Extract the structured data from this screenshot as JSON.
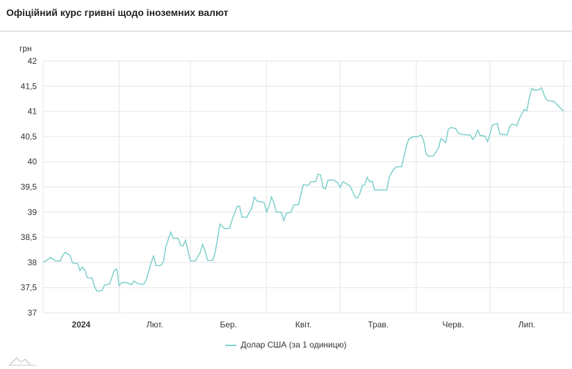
{
  "header": {
    "title": "Офіційний курс гривні щодо іноземних валют"
  },
  "chart_data": {
    "type": "line",
    "ylabel": "грн",
    "ylim": [
      37,
      42
    ],
    "yticks": [
      "42",
      "41,5",
      "41",
      "40,5",
      "40",
      "39,5",
      "39",
      "38,5",
      "38",
      "37,5",
      "37"
    ],
    "ytick_values": [
      42,
      41.5,
      41,
      40.5,
      40,
      39.5,
      39,
      38.5,
      38,
      37.5,
      37
    ],
    "xlim": [
      "2024-01-01",
      "2024-07-31"
    ],
    "xticks": [
      {
        "label": "2024",
        "month_start": "2024-01-01",
        "bold": true
      },
      {
        "label": "Лют.",
        "month_start": "2024-02-01"
      },
      {
        "label": "Бер.",
        "month_start": "2024-03-01"
      },
      {
        "label": "Квіт.",
        "month_start": "2024-04-01"
      },
      {
        "label": "Трав.",
        "month_start": "2024-05-01"
      },
      {
        "label": "Черв.",
        "month_start": "2024-06-01"
      },
      {
        "label": "Лип.",
        "month_start": "2024-07-01"
      }
    ],
    "grid": true,
    "legend_position": "bottom",
    "series": [
      {
        "name": "Долар США (за 1 одиницю)",
        "color": "#7ccfcb",
        "points": [
          [
            "2024-01-01",
            38.0
          ],
          [
            "2024-01-03",
            38.06
          ],
          [
            "2024-01-04",
            38.1
          ],
          [
            "2024-01-06",
            38.03
          ],
          [
            "2024-01-08",
            38.03
          ],
          [
            "2024-01-09",
            38.14
          ],
          [
            "2024-01-10",
            38.2
          ],
          [
            "2024-01-12",
            38.14
          ],
          [
            "2024-01-13",
            37.99
          ],
          [
            "2024-01-15",
            37.98
          ],
          [
            "2024-01-16",
            37.84
          ],
          [
            "2024-01-17",
            37.91
          ],
          [
            "2024-01-18",
            37.84
          ],
          [
            "2024-01-19",
            37.7
          ],
          [
            "2024-01-21",
            37.69
          ],
          [
            "2024-01-22",
            37.51
          ],
          [
            "2024-01-23",
            37.43
          ],
          [
            "2024-01-25",
            37.44
          ],
          [
            "2024-01-26",
            37.55
          ],
          [
            "2024-01-28",
            37.57
          ],
          [
            "2024-01-30",
            37.84
          ],
          [
            "2024-01-31",
            37.87
          ],
          [
            "2024-02-01",
            37.54
          ],
          [
            "2024-02-02",
            37.6
          ],
          [
            "2024-02-04",
            37.6
          ],
          [
            "2024-02-06",
            37.56
          ],
          [
            "2024-02-07",
            37.63
          ],
          [
            "2024-02-09",
            37.57
          ],
          [
            "2024-02-11",
            37.57
          ],
          [
            "2024-02-12",
            37.65
          ],
          [
            "2024-02-14",
            38.0
          ],
          [
            "2024-02-15",
            38.13
          ],
          [
            "2024-02-16",
            37.94
          ],
          [
            "2024-02-18",
            37.94
          ],
          [
            "2024-02-19",
            38.01
          ],
          [
            "2024-02-20",
            38.32
          ],
          [
            "2024-02-22",
            38.6
          ],
          [
            "2024-02-23",
            38.48
          ],
          [
            "2024-02-25",
            38.48
          ],
          [
            "2024-02-26",
            38.34
          ],
          [
            "2024-02-27",
            38.33
          ],
          [
            "2024-02-28",
            38.44
          ],
          [
            "2024-03-01",
            38.03
          ],
          [
            "2024-03-03",
            38.03
          ],
          [
            "2024-03-05",
            38.2
          ],
          [
            "2024-03-06",
            38.36
          ],
          [
            "2024-03-07",
            38.22
          ],
          [
            "2024-03-08",
            38.04
          ],
          [
            "2024-03-10",
            38.04
          ],
          [
            "2024-03-11",
            38.18
          ],
          [
            "2024-03-12",
            38.45
          ],
          [
            "2024-03-13",
            38.76
          ],
          [
            "2024-03-15",
            38.67
          ],
          [
            "2024-03-17",
            38.68
          ],
          [
            "2024-03-18",
            38.85
          ],
          [
            "2024-03-20",
            39.11
          ],
          [
            "2024-03-21",
            39.12
          ],
          [
            "2024-03-22",
            38.9
          ],
          [
            "2024-03-24",
            38.9
          ],
          [
            "2024-03-26",
            39.08
          ],
          [
            "2024-03-27",
            39.3
          ],
          [
            "2024-03-28",
            39.22
          ],
          [
            "2024-03-31",
            39.19
          ],
          [
            "2024-04-01",
            39.0
          ],
          [
            "2024-04-02",
            39.11
          ],
          [
            "2024-04-03",
            39.3
          ],
          [
            "2024-04-04",
            39.18
          ],
          [
            "2024-04-05",
            39.0
          ],
          [
            "2024-04-07",
            39.0
          ],
          [
            "2024-04-08",
            38.83
          ],
          [
            "2024-04-09",
            38.98
          ],
          [
            "2024-04-11",
            39.0
          ],
          [
            "2024-04-12",
            39.14
          ],
          [
            "2024-04-14",
            39.15
          ],
          [
            "2024-04-15",
            39.36
          ],
          [
            "2024-04-16",
            39.55
          ],
          [
            "2024-04-18",
            39.53
          ],
          [
            "2024-04-19",
            39.6
          ],
          [
            "2024-04-21",
            39.61
          ],
          [
            "2024-04-22",
            39.75
          ],
          [
            "2024-04-23",
            39.74
          ],
          [
            "2024-04-24",
            39.49
          ],
          [
            "2024-04-25",
            39.46
          ],
          [
            "2024-04-26",
            39.63
          ],
          [
            "2024-04-28",
            39.64
          ],
          [
            "2024-04-30",
            39.59
          ],
          [
            "2024-05-01",
            39.49
          ],
          [
            "2024-05-02",
            39.6
          ],
          [
            "2024-05-03",
            39.58
          ],
          [
            "2024-05-05",
            39.52
          ],
          [
            "2024-05-07",
            39.3
          ],
          [
            "2024-05-08",
            39.28
          ],
          [
            "2024-05-09",
            39.37
          ],
          [
            "2024-05-10",
            39.53
          ],
          [
            "2024-05-11",
            39.54
          ],
          [
            "2024-05-12",
            39.69
          ],
          [
            "2024-05-13",
            39.6
          ],
          [
            "2024-05-14",
            39.62
          ],
          [
            "2024-05-15",
            39.44
          ],
          [
            "2024-05-20",
            39.44
          ],
          [
            "2024-05-21",
            39.7
          ],
          [
            "2024-05-22",
            39.79
          ],
          [
            "2024-05-23",
            39.86
          ],
          [
            "2024-05-24",
            39.9
          ],
          [
            "2024-05-26",
            39.9
          ],
          [
            "2024-05-27",
            40.11
          ],
          [
            "2024-05-28",
            40.32
          ],
          [
            "2024-05-29",
            40.46
          ],
          [
            "2024-05-31",
            40.5
          ],
          [
            "2024-06-01",
            40.49
          ],
          [
            "2024-06-03",
            40.53
          ],
          [
            "2024-06-04",
            40.42
          ],
          [
            "2024-06-05",
            40.15
          ],
          [
            "2024-06-06",
            40.11
          ],
          [
            "2024-06-08",
            40.12
          ],
          [
            "2024-06-10",
            40.27
          ],
          [
            "2024-06-11",
            40.46
          ],
          [
            "2024-06-13",
            40.38
          ],
          [
            "2024-06-14",
            40.64
          ],
          [
            "2024-06-15",
            40.68
          ],
          [
            "2024-06-17",
            40.66
          ],
          [
            "2024-06-18",
            40.57
          ],
          [
            "2024-06-20",
            40.54
          ],
          [
            "2024-06-23",
            40.53
          ],
          [
            "2024-06-24",
            40.44
          ],
          [
            "2024-06-25",
            40.51
          ],
          [
            "2024-06-26",
            40.63
          ],
          [
            "2024-06-27",
            40.52
          ],
          [
            "2024-06-29",
            40.51
          ],
          [
            "2024-06-30",
            40.4
          ],
          [
            "2024-07-01",
            40.55
          ],
          [
            "2024-07-02",
            40.73
          ],
          [
            "2024-07-04",
            40.76
          ],
          [
            "2024-07-05",
            40.55
          ],
          [
            "2024-07-08",
            40.53
          ],
          [
            "2024-07-09",
            40.7
          ],
          [
            "2024-07-10",
            40.75
          ],
          [
            "2024-07-12",
            40.72
          ],
          [
            "2024-07-13",
            40.86
          ],
          [
            "2024-07-15",
            41.04
          ],
          [
            "2024-07-16",
            41.01
          ],
          [
            "2024-07-17",
            41.26
          ],
          [
            "2024-07-18",
            41.46
          ],
          [
            "2024-07-19",
            41.42
          ],
          [
            "2024-07-21",
            41.43
          ],
          [
            "2024-07-22",
            41.47
          ],
          [
            "2024-07-23",
            41.33
          ],
          [
            "2024-07-24",
            41.23
          ],
          [
            "2024-07-25",
            41.21
          ],
          [
            "2024-07-27",
            41.2
          ],
          [
            "2024-07-29",
            41.1
          ],
          [
            "2024-07-30",
            41.05
          ],
          [
            "2024-07-31",
            41.0
          ]
        ]
      }
    ]
  }
}
